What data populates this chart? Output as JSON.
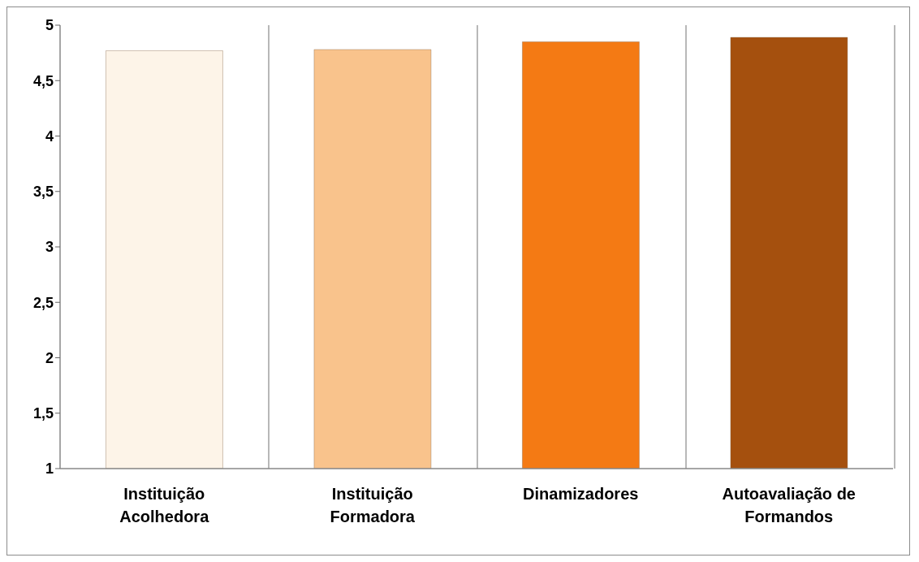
{
  "chart_data": {
    "type": "bar",
    "categories": [
      "Instituição Acolhedora",
      "Instituição Formadora",
      "Dinamizadores",
      "Autoavaliação de Formandos"
    ],
    "values": [
      4.77,
      4.78,
      4.85,
      4.89
    ],
    "colors": [
      "#fdf4e8",
      "#f9c38c",
      "#f47a14",
      "#a5500e"
    ],
    "ylim": [
      1,
      5
    ],
    "yticks": [
      1,
      {
        "value": 1.5,
        "label": "1,5"
      },
      2,
      {
        "value": 2.5,
        "label": "2,5"
      },
      3,
      {
        "value": 3.5,
        "label": "3,5"
      },
      4,
      {
        "value": 4.5,
        "label": "4,5"
      },
      5
    ],
    "grid": "x"
  }
}
